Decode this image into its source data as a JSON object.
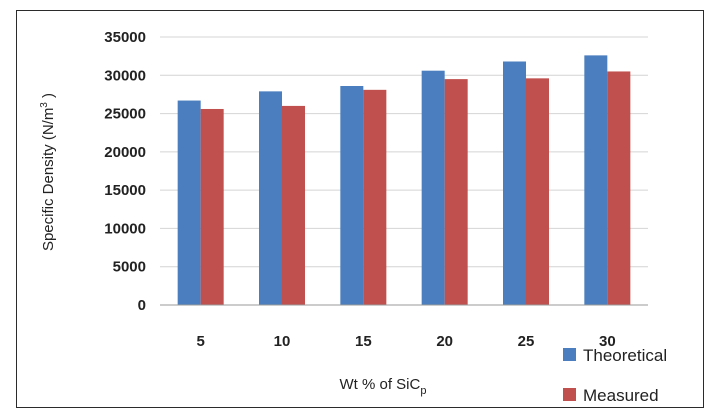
{
  "chart_data": {
    "type": "bar",
    "categories": [
      "5",
      "10",
      "15",
      "20",
      "25",
      "30"
    ],
    "series": [
      {
        "name": "Theoretical",
        "values": [
          26700,
          27900,
          28600,
          30600,
          31800,
          32600
        ],
        "color": "#4a7ebf"
      },
      {
        "name": "Measured",
        "values": [
          25600,
          26000,
          28100,
          29500,
          29600,
          30500
        ],
        "color": "#c0504d"
      }
    ],
    "xlabel": "Wt % of SiC",
    "xlabel_subscript": "p",
    "ylabel": "Specific Density (N/m",
    "ylabel_superscript": "3",
    "ylabel_suffix": " )",
    "ylim": [
      0,
      35000
    ],
    "yticks": [
      "0",
      "5000",
      "10000",
      "15000",
      "20000",
      "25000",
      "30000",
      "35000"
    ],
    "grid": true,
    "legend_position": "bottom-right"
  }
}
